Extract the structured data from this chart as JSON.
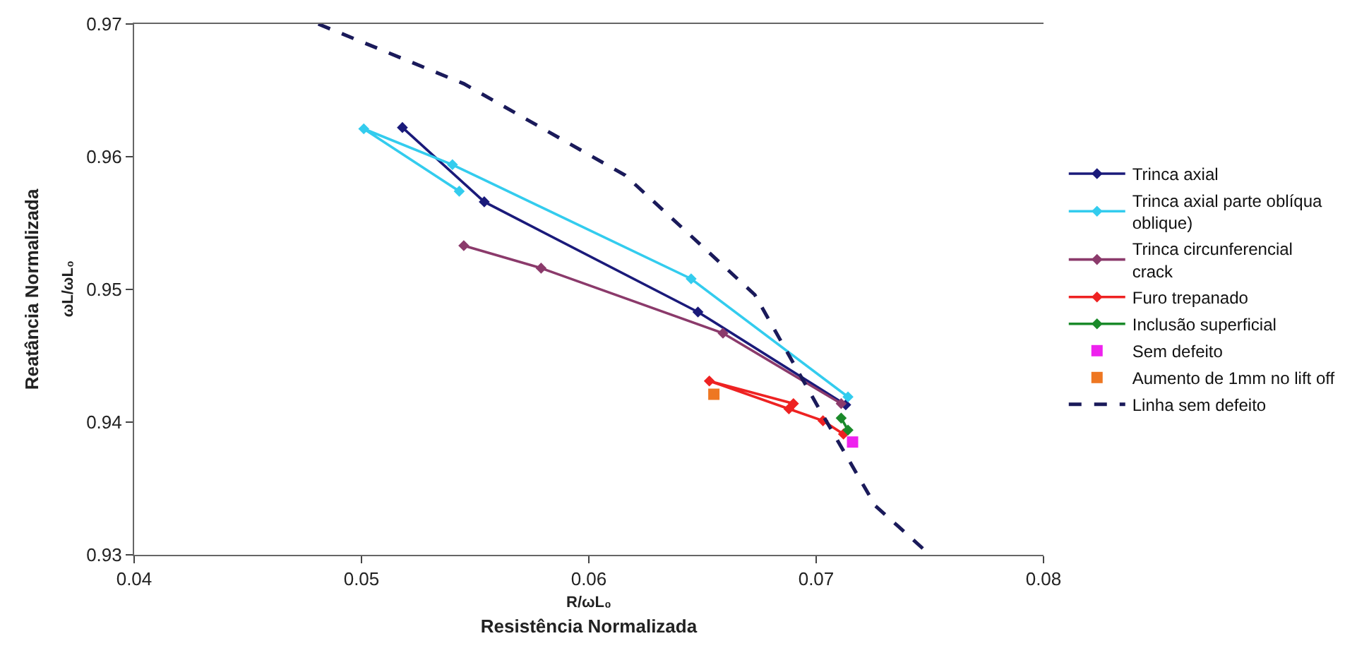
{
  "chart_data": {
    "type": "line",
    "xlabel": "Resistência Normalizada",
    "ylabel": "Reatância Normalizada",
    "annotations": [
      "R/ωL₀",
      "ωL/ωL₀"
    ],
    "xlim": [
      0.04,
      0.08
    ],
    "xticks": [
      0.04,
      0.05,
      0.06,
      0.07,
      0.08
    ],
    "ylim": [
      0.93,
      0.97
    ],
    "yticks": [
      0.93,
      0.94,
      0.95,
      0.96,
      0.97
    ],
    "legend": "right",
    "marker": "diamond",
    "line_style": "solid",
    "series": [
      {
        "name": "Trinca axial",
        "color": "#1a1a7a",
        "x": [
          0.0518,
          0.0554,
          0.0648,
          0.0713
        ],
        "values": [
          0.9622,
          0.9566,
          0.9483,
          0.9413
        ]
      },
      {
        "name": "Trinca axial parte oblíqua\noblique)",
        "color": "#33ccee",
        "x": [
          0.0543,
          0.0501,
          0.054,
          0.0645,
          0.0714
        ],
        "values": [
          0.9574,
          0.9621,
          0.9594,
          0.9508,
          0.9419
        ]
      },
      {
        "name": "Trinca circunferencial\ncrack",
        "color": "#8b3a6b",
        "x": [
          0.0545,
          0.0579,
          0.0659,
          0.0711
        ],
        "values": [
          0.9533,
          0.9516,
          0.9467,
          0.9414
        ]
      },
      {
        "name": "Furo trepanado",
        "color": "#ee2222",
        "x": [
          0.069,
          0.0653,
          0.0688,
          0.0703,
          0.0712
        ],
        "values": [
          0.9414,
          0.9431,
          0.941,
          0.9401,
          0.9391
        ]
      },
      {
        "name": "Inclusão superficial",
        "color": "#1a8a2a",
        "x": [
          0.0711,
          0.0714
        ],
        "values": [
          0.9403,
          0.9394
        ]
      },
      {
        "name": "Sem defeito",
        "type": "scatter",
        "marker": "square",
        "color": "#ee22ee",
        "x": [
          0.0716
        ],
        "values": [
          0.9385
        ]
      },
      {
        "name": "Aumento de 1mm no lift off",
        "type": "scatter",
        "marker": "square",
        "color": "#ee7722",
        "x": [
          0.0655
        ],
        "values": [
          0.9421
        ]
      },
      {
        "name": "Linha sem defeito",
        "color": "#1a1a5a",
        "line_style": "dashed",
        "marker": "none",
        "x": [
          0.0481,
          0.0545,
          0.0616,
          0.0673,
          0.0701,
          0.0726,
          0.075
        ],
        "values": [
          0.97,
          0.9655,
          0.9586,
          0.9496,
          0.9411,
          0.9337,
          0.93
        ]
      }
    ]
  }
}
